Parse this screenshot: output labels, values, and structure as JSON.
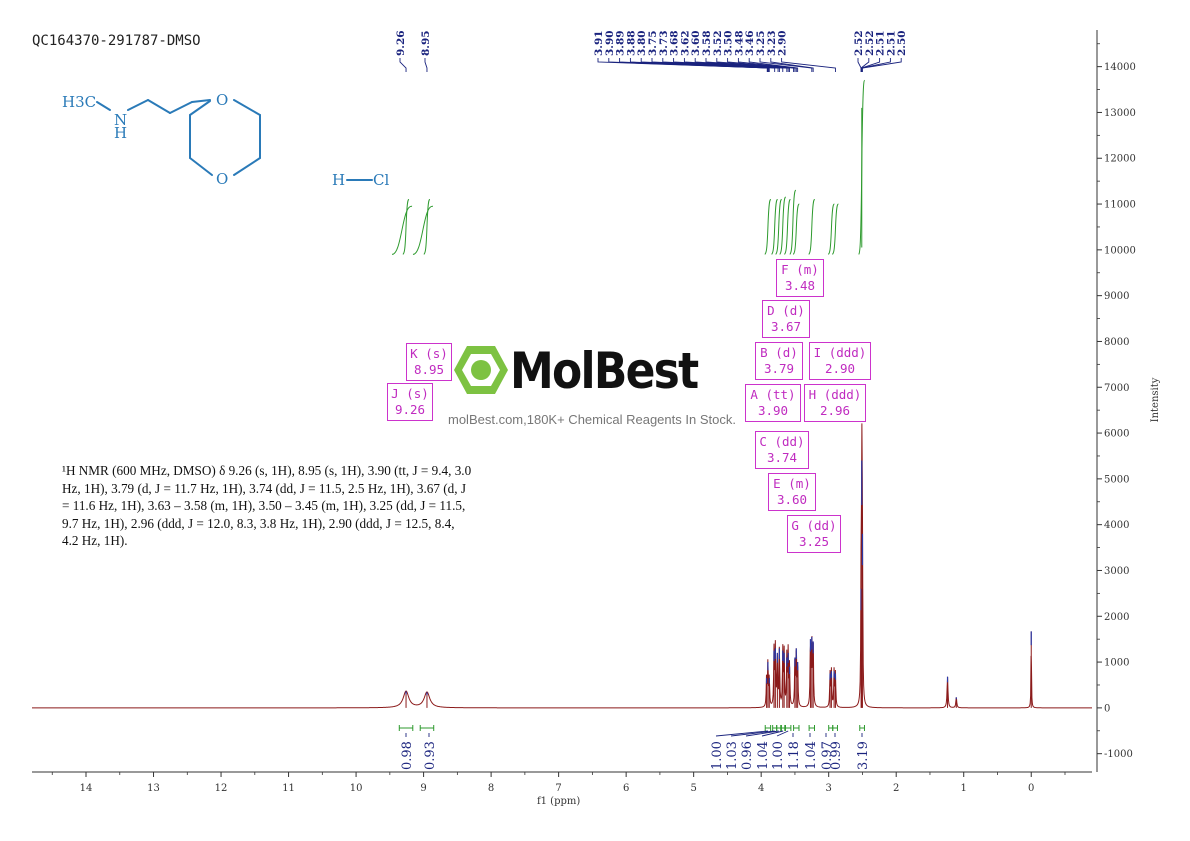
{
  "sample_id": "QC164370-291787-DMSO",
  "structure": {
    "methyl_label": "H3C",
    "nh_n": "N",
    "nh_h": "H",
    "ring_o_top": "O",
    "ring_o_bottom": "O",
    "hcl_h": "H",
    "hcl_cl": "Cl"
  },
  "logo": {
    "name": "MolBest",
    "tagline": "molBest.com,180K+ Chemical Reagents In Stock."
  },
  "nmr_description": "¹H NMR (600 MHz, DMSO) δ 9.26 (s, 1H), 8.95 (s, 1H), 3.90 (tt, J = 9.4, 3.0 Hz, 1H), 3.79 (d, J = 11.7 Hz, 1H), 3.74 (dd, J = 11.5, 2.5 Hz, 1H), 3.67 (d, J = 11.6 Hz, 1H), 3.63 – 3.58 (m, 1H), 3.50 – 3.45 (m, 1H), 3.25 (dd, J = 11.5, 9.7 Hz, 1H), 2.96 (ddd, J = 12.0, 8.3, 3.8 Hz, 1H), 2.90 (ddd, J = 12.5, 8.4, 4.2 Hz, 1H).",
  "multiplet_labels": [
    {
      "id": "K",
      "line1": "K (s)",
      "line2": "8.95"
    },
    {
      "id": "J",
      "line1": "J (s)",
      "line2": "9.26"
    },
    {
      "id": "F",
      "line1": "F (m)",
      "line2": "3.48"
    },
    {
      "id": "D",
      "line1": "D (d)",
      "line2": "3.67"
    },
    {
      "id": "B",
      "line1": "B (d)",
      "line2": "3.79"
    },
    {
      "id": "I",
      "line1": "I (ddd)",
      "line2": "2.90"
    },
    {
      "id": "A",
      "line1": "A (tt)",
      "line2": "3.90"
    },
    {
      "id": "H",
      "line1": "H (ddd)",
      "line2": "2.96"
    },
    {
      "id": "C",
      "line1": "C (dd)",
      "line2": "3.74"
    },
    {
      "id": "E",
      "line1": "E (m)",
      "line2": "3.60"
    },
    {
      "id": "G",
      "line1": "G (dd)",
      "line2": "3.25"
    }
  ],
  "chart_data": {
    "type": "line",
    "title": "",
    "xlabel": "f1 (ppm)",
    "ylabel": "Intensity",
    "xlim": [
      14.8,
      -0.9
    ],
    "ylim": [
      -1400,
      14800
    ],
    "x_reversed": true,
    "x_ticks": [
      14,
      13,
      12,
      11,
      10,
      9,
      8,
      7,
      6,
      5,
      4,
      3,
      2,
      1,
      0
    ],
    "y_ticks": [
      -1000,
      0,
      1000,
      2000,
      3000,
      4000,
      5000,
      6000,
      7000,
      8000,
      9000,
      10000,
      11000,
      12000,
      13000,
      14000
    ],
    "grid": false,
    "series_color": "#8b1a1a",
    "peaks": [
      {
        "ppm": 9.26,
        "height": 360,
        "width": 0.05
      },
      {
        "ppm": 8.95,
        "height": 340,
        "width": 0.05
      },
      {
        "ppm": 3.92,
        "height": 650,
        "width": 0.006
      },
      {
        "ppm": 3.9,
        "height": 1000,
        "width": 0.006
      },
      {
        "ppm": 3.88,
        "height": 650,
        "width": 0.006
      },
      {
        "ppm": 3.81,
        "height": 1250,
        "width": 0.006
      },
      {
        "ppm": 3.79,
        "height": 1300,
        "width": 0.006
      },
      {
        "ppm": 3.76,
        "height": 1200,
        "width": 0.006
      },
      {
        "ppm": 3.73,
        "height": 1300,
        "width": 0.006
      },
      {
        "ppm": 3.68,
        "height": 1250,
        "width": 0.006
      },
      {
        "ppm": 3.66,
        "height": 1200,
        "width": 0.006
      },
      {
        "ppm": 3.62,
        "height": 1100,
        "width": 0.006
      },
      {
        "ppm": 3.6,
        "height": 1200,
        "width": 0.006
      },
      {
        "ppm": 3.58,
        "height": 900,
        "width": 0.006
      },
      {
        "ppm": 3.5,
        "height": 1100,
        "width": 0.006
      },
      {
        "ppm": 3.48,
        "height": 1300,
        "width": 0.006
      },
      {
        "ppm": 3.46,
        "height": 1000,
        "width": 0.006
      },
      {
        "ppm": 3.27,
        "height": 1500,
        "width": 0.006
      },
      {
        "ppm": 3.25,
        "height": 1550,
        "width": 0.006
      },
      {
        "ppm": 3.23,
        "height": 1450,
        "width": 0.006
      },
      {
        "ppm": 2.98,
        "height": 750,
        "width": 0.006
      },
      {
        "ppm": 2.96,
        "height": 800,
        "width": 0.006
      },
      {
        "ppm": 2.92,
        "height": 800,
        "width": 0.006
      },
      {
        "ppm": 2.9,
        "height": 750,
        "width": 0.006
      },
      {
        "ppm": 2.52,
        "height": 2600,
        "width": 0.005
      },
      {
        "ppm": 2.51,
        "height": 5400,
        "width": 0.005
      },
      {
        "ppm": 2.5,
        "height": 3800,
        "width": 0.005
      },
      {
        "ppm": 1.24,
        "height": 680,
        "width": 0.008
      },
      {
        "ppm": 1.11,
        "height": 230,
        "width": 0.008
      },
      {
        "ppm": 0.0,
        "height": 1670,
        "width": 0.004
      }
    ],
    "peak_top_labels": [
      "9.26",
      "8.95",
      "3.91",
      "3.90",
      "3.89",
      "3.88",
      "3.80",
      "3.75",
      "3.73",
      "3.68",
      "3.62",
      "3.60",
      "3.58",
      "3.52",
      "3.50",
      "3.48",
      "3.46",
      "3.25",
      "3.23",
      "2.90",
      "2.52",
      "2.52",
      "2.51",
      "2.51",
      "2.50"
    ],
    "peak_label_ppm": [
      9.26,
      8.95,
      3.91,
      3.9,
      3.89,
      3.88,
      3.8,
      3.75,
      3.73,
      3.68,
      3.62,
      3.6,
      3.58,
      3.52,
      3.5,
      3.48,
      3.46,
      3.25,
      3.23,
      2.9,
      2.52,
      2.52,
      2.51,
      2.51,
      2.5
    ],
    "integrals": [
      {
        "from": 9.36,
        "to": 9.16,
        "value": "0.98"
      },
      {
        "from": 9.05,
        "to": 8.85,
        "value": "0.93"
      },
      {
        "from": 3.94,
        "to": 3.86,
        "value": "1.00"
      },
      {
        "from": 3.83,
        "to": 3.77,
        "value": "1.03"
      },
      {
        "from": 3.77,
        "to": 3.71,
        "value": "0.96"
      },
      {
        "from": 3.7,
        "to": 3.65,
        "value": "1.04"
      },
      {
        "from": 3.64,
        "to": 3.56,
        "value": "1.00"
      },
      {
        "from": 3.52,
        "to": 3.44,
        "value": "1.18"
      },
      {
        "from": 3.29,
        "to": 3.21,
        "value": "1.04"
      },
      {
        "from": 3.0,
        "to": 2.94,
        "value": "0.97"
      },
      {
        "from": 2.94,
        "to": 2.87,
        "value": "0.99"
      },
      {
        "from": 2.54,
        "to": 2.47,
        "value": "3.19"
      }
    ],
    "integral_curves": [
      {
        "ppm": 9.26,
        "rise": 1200
      },
      {
        "ppm": 8.95,
        "rise": 1200
      },
      {
        "ppm": 3.9,
        "rise": 1200
      },
      {
        "ppm": 3.8,
        "rise": 1200
      },
      {
        "ppm": 3.74,
        "rise": 1200
      },
      {
        "ppm": 3.68,
        "rise": 1250
      },
      {
        "ppm": 3.61,
        "rise": 1200
      },
      {
        "ppm": 3.53,
        "rise": 1400
      },
      {
        "ppm": 3.48,
        "rise": 1100
      },
      {
        "ppm": 3.25,
        "rise": 1200
      },
      {
        "ppm": 2.96,
        "rise": 1100
      },
      {
        "ppm": 2.9,
        "rise": 1100
      },
      {
        "ppm": 2.51,
        "rise": 3800
      }
    ]
  }
}
